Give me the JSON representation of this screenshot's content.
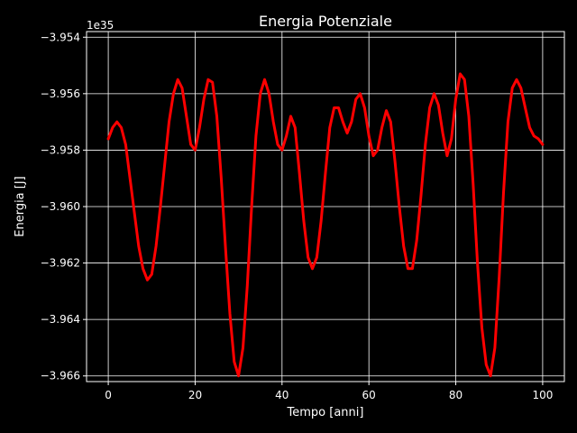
{
  "chart_data": {
    "type": "line",
    "title": "Energia Potenziale",
    "xlabel": "Tempo [anni]",
    "ylabel": "Energia [J]",
    "offset_label": "1e35",
    "xlim": [
      -5,
      105
    ],
    "ylim": [
      -3.9662,
      -3.9538
    ],
    "xticks": [
      0,
      20,
      40,
      60,
      80,
      100
    ],
    "xtick_labels": [
      "0",
      "20",
      "40",
      "60",
      "80",
      "100"
    ],
    "yticks": [
      -3.966,
      -3.964,
      -3.962,
      -3.96,
      -3.958,
      -3.956,
      -3.954
    ],
    "ytick_labels": [
      "−3.966",
      "−3.964",
      "−3.962",
      "−3.960",
      "−3.958",
      "−3.956",
      "−3.954"
    ],
    "grid": true,
    "colors": {
      "background": "#000000",
      "axes": "#ffffff",
      "line": "#ff0000",
      "grid": "#ffffff"
    },
    "series": [
      {
        "x": [
          0,
          1,
          2,
          3,
          4,
          5,
          6,
          7,
          8,
          9,
          10,
          11,
          12,
          13,
          14,
          15,
          16,
          17,
          18,
          19,
          20,
          21,
          22,
          23,
          24,
          25,
          26,
          27,
          28,
          29,
          30,
          31,
          32,
          33,
          34,
          35,
          36,
          37,
          38,
          39,
          40,
          41,
          42,
          43,
          44,
          45,
          46,
          47,
          48,
          49,
          50,
          51,
          52,
          53,
          54,
          55,
          56,
          57,
          58,
          59,
          60,
          61,
          62,
          63,
          64,
          65,
          66,
          67,
          68,
          69,
          70,
          71,
          72,
          73,
          74,
          75,
          76,
          77,
          78,
          79,
          80,
          81,
          82,
          83,
          84,
          85,
          86,
          87,
          88,
          89,
          90,
          91,
          92,
          93,
          94,
          95,
          96,
          97,
          98,
          99,
          100
        ],
        "y": [
          -3.9576,
          -3.9572,
          -3.957,
          -3.9572,
          -3.9578,
          -3.959,
          -3.9602,
          -3.9614,
          -3.9622,
          -3.9626,
          -3.9624,
          -3.9614,
          -3.96,
          -3.9585,
          -3.957,
          -3.956,
          -3.9555,
          -3.9558,
          -3.9568,
          -3.9578,
          -3.958,
          -3.9572,
          -3.9562,
          -3.9555,
          -3.9556,
          -3.9568,
          -3.959,
          -3.9615,
          -3.9638,
          -3.9655,
          -3.966,
          -3.965,
          -3.9628,
          -3.96,
          -3.9575,
          -3.956,
          -3.9555,
          -3.956,
          -3.957,
          -3.9578,
          -3.958,
          -3.9575,
          -3.9568,
          -3.9572,
          -3.9588,
          -3.9605,
          -3.9618,
          -3.9622,
          -3.9618,
          -3.9605,
          -3.9588,
          -3.9572,
          -3.9565,
          -3.9565,
          -3.957,
          -3.9574,
          -3.957,
          -3.9562,
          -3.956,
          -3.9565,
          -3.9575,
          -3.9582,
          -3.958,
          -3.9572,
          -3.9566,
          -3.957,
          -3.9584,
          -3.96,
          -3.9614,
          -3.9622,
          -3.9622,
          -3.9612,
          -3.9596,
          -3.9578,
          -3.9565,
          -3.956,
          -3.9564,
          -3.9574,
          -3.9582,
          -3.9576,
          -3.9562,
          -3.9553,
          -3.9555,
          -3.9568,
          -3.9592,
          -3.962,
          -3.9643,
          -3.9656,
          -3.966,
          -3.965,
          -3.9625,
          -3.9595,
          -3.957,
          -3.9558,
          -3.9555,
          -3.9558,
          -3.9565,
          -3.9572,
          -3.9575,
          -3.9576,
          -3.9578
        ]
      }
    ]
  }
}
